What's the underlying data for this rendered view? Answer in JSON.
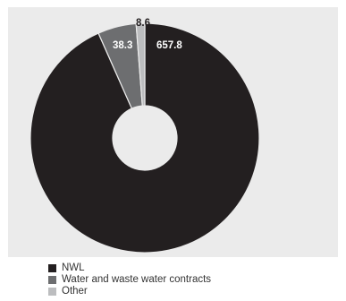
{
  "chart_data": {
    "type": "pie",
    "variant": "donut",
    "categories": [
      "NWL",
      "Water and waste water contracts",
      "Other"
    ],
    "values": [
      657.8,
      38.3,
      8.6
    ],
    "data_labels": [
      "657.8",
      "38.3",
      "8.6"
    ],
    "colors": [
      "#231f20",
      "#6d6e70",
      "#bcbdbf"
    ],
    "label_colors": [
      "#ffffff",
      "#ffffff",
      "#231f20"
    ],
    "legend_position": "bottom-left",
    "title": ""
  }
}
